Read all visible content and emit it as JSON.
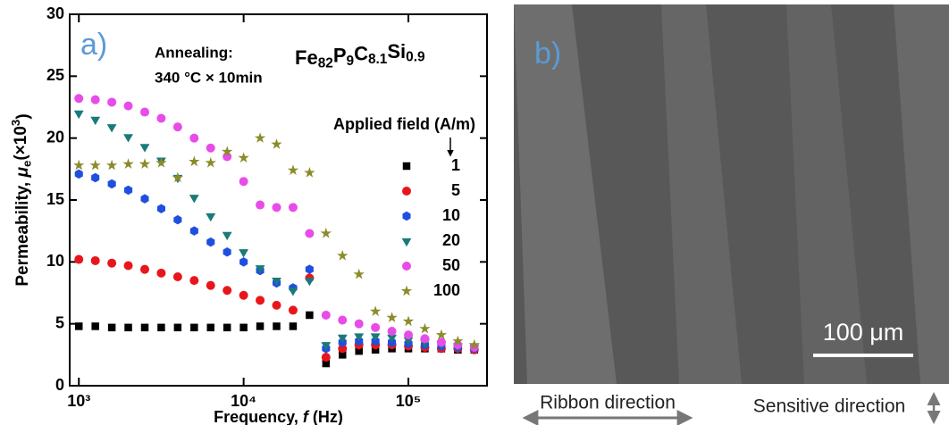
{
  "chart_data": {
    "type": "scatter",
    "panel_label": "a)",
    "annotations": [
      "Annealing:",
      "340 °C × 10min"
    ],
    "formula": [
      {
        "text": "Fe",
        "style": "normal"
      },
      {
        "text": "82",
        "style": "sub"
      },
      {
        "text": "P",
        "style": "normal"
      },
      {
        "text": "9",
        "style": "sub"
      },
      {
        "text": "C",
        "style": "normal"
      },
      {
        "text": "8.1",
        "style": "sub"
      },
      {
        "text": "Si",
        "style": "normal"
      },
      {
        "text": "0.9",
        "style": "sub"
      }
    ],
    "x_label": [
      {
        "text": "Frequency, ",
        "style": "normal"
      },
      {
        "text": "f",
        "style": "italic"
      },
      {
        "text": " (Hz)",
        "style": "normal"
      }
    ],
    "y_label": [
      {
        "text": "Permeability, ",
        "style": "normal"
      },
      {
        "text": "μ",
        "style": "italic"
      },
      {
        "text": "e",
        "style": "sub"
      },
      {
        "text": "(×10",
        "style": "normal"
      },
      {
        "text": "3",
        "style": "sup"
      },
      {
        "text": ")",
        "style": "normal"
      }
    ],
    "legend_title": "Applied field (A/m)",
    "x_log": true,
    "xlim": [
      880,
      300000
    ],
    "ylim": [
      0,
      30
    ],
    "xticks": [
      {
        "value": 1000,
        "label": "10³"
      },
      {
        "value": 10000,
        "label": "10⁴"
      },
      {
        "value": 100000,
        "label": "10⁵"
      }
    ],
    "yticks": [
      0,
      5,
      10,
      15,
      20,
      25,
      30
    ],
    "x": [
      1000,
      1259,
      1585,
      1995,
      2512,
      3162,
      3981,
      5012,
      6310,
      7943,
      10000,
      12589,
      15849,
      19953,
      25119,
      31623,
      39811,
      50119,
      63096,
      79433,
      100000,
      125893,
      158489,
      199526,
      251189
    ],
    "series": [
      {
        "name": "1",
        "color": "#000000",
        "marker": "square",
        "values": [
          4.8,
          4.8,
          4.7,
          4.7,
          4.7,
          4.7,
          4.7,
          4.7,
          4.7,
          4.7,
          4.7,
          4.8,
          4.8,
          4.8,
          5.7,
          1.8,
          2.5,
          2.8,
          2.9,
          3.0,
          3.0,
          3.0,
          3.0,
          2.9,
          2.9
        ]
      },
      {
        "name": "5",
        "color": "#e8161b",
        "marker": "circle",
        "values": [
          10.2,
          10.1,
          9.9,
          9.7,
          9.4,
          9.1,
          8.8,
          8.5,
          8.1,
          7.7,
          7.3,
          6.9,
          6.5,
          6.1,
          8.7,
          2.3,
          3.0,
          3.3,
          3.3,
          3.3,
          3.2,
          3.1,
          3.0,
          3.0,
          2.9
        ]
      },
      {
        "name": "10",
        "color": "#1f4fe0",
        "marker": "hexagon",
        "values": [
          17.1,
          16.8,
          16.3,
          15.8,
          15.1,
          14.3,
          13.4,
          12.5,
          11.6,
          10.8,
          10.0,
          9.3,
          8.3,
          7.9,
          9.4,
          3.0,
          3.5,
          3.6,
          3.6,
          3.5,
          3.4,
          3.3,
          3.2,
          3.1,
          3.0
        ]
      },
      {
        "name": "20",
        "color": "#1a7a7a",
        "marker": "triangle-down",
        "values": [
          22.0,
          21.5,
          20.9,
          20.1,
          19.3,
          18.2,
          16.8,
          15.2,
          13.7,
          12.2,
          10.8,
          9.5,
          8.5,
          7.7,
          8.5,
          3.3,
          3.9,
          4.0,
          4.0,
          3.9,
          3.7,
          3.5,
          3.4,
          3.2,
          3.1
        ]
      },
      {
        "name": "50",
        "color": "#e84ce8",
        "marker": "circle",
        "values": [
          23.2,
          23.1,
          22.9,
          22.6,
          22.1,
          21.6,
          20.9,
          20.0,
          19.2,
          18.5,
          16.5,
          14.6,
          14.4,
          14.4,
          12.3,
          5.7,
          5.3,
          5.0,
          4.7,
          4.4,
          4.1,
          3.8,
          3.5,
          3.3,
          3.1
        ]
      },
      {
        "name": "100",
        "color": "#8b8b2a",
        "marker": "star",
        "values": [
          17.8,
          17.8,
          17.8,
          17.9,
          17.9,
          18.0,
          16.8,
          18.1,
          18.0,
          18.9,
          18.4,
          20.0,
          19.5,
          17.4,
          17.2,
          12.3,
          10.5,
          9.0,
          6.0,
          5.5,
          5.2,
          4.6,
          4.1,
          3.6,
          3.3
        ]
      }
    ]
  },
  "image_panel": {
    "panel_label": "b)",
    "scale_bar": "100 μm",
    "ribbon_direction": "Ribbon direction",
    "sensitive_direction": "Sensitive direction"
  }
}
